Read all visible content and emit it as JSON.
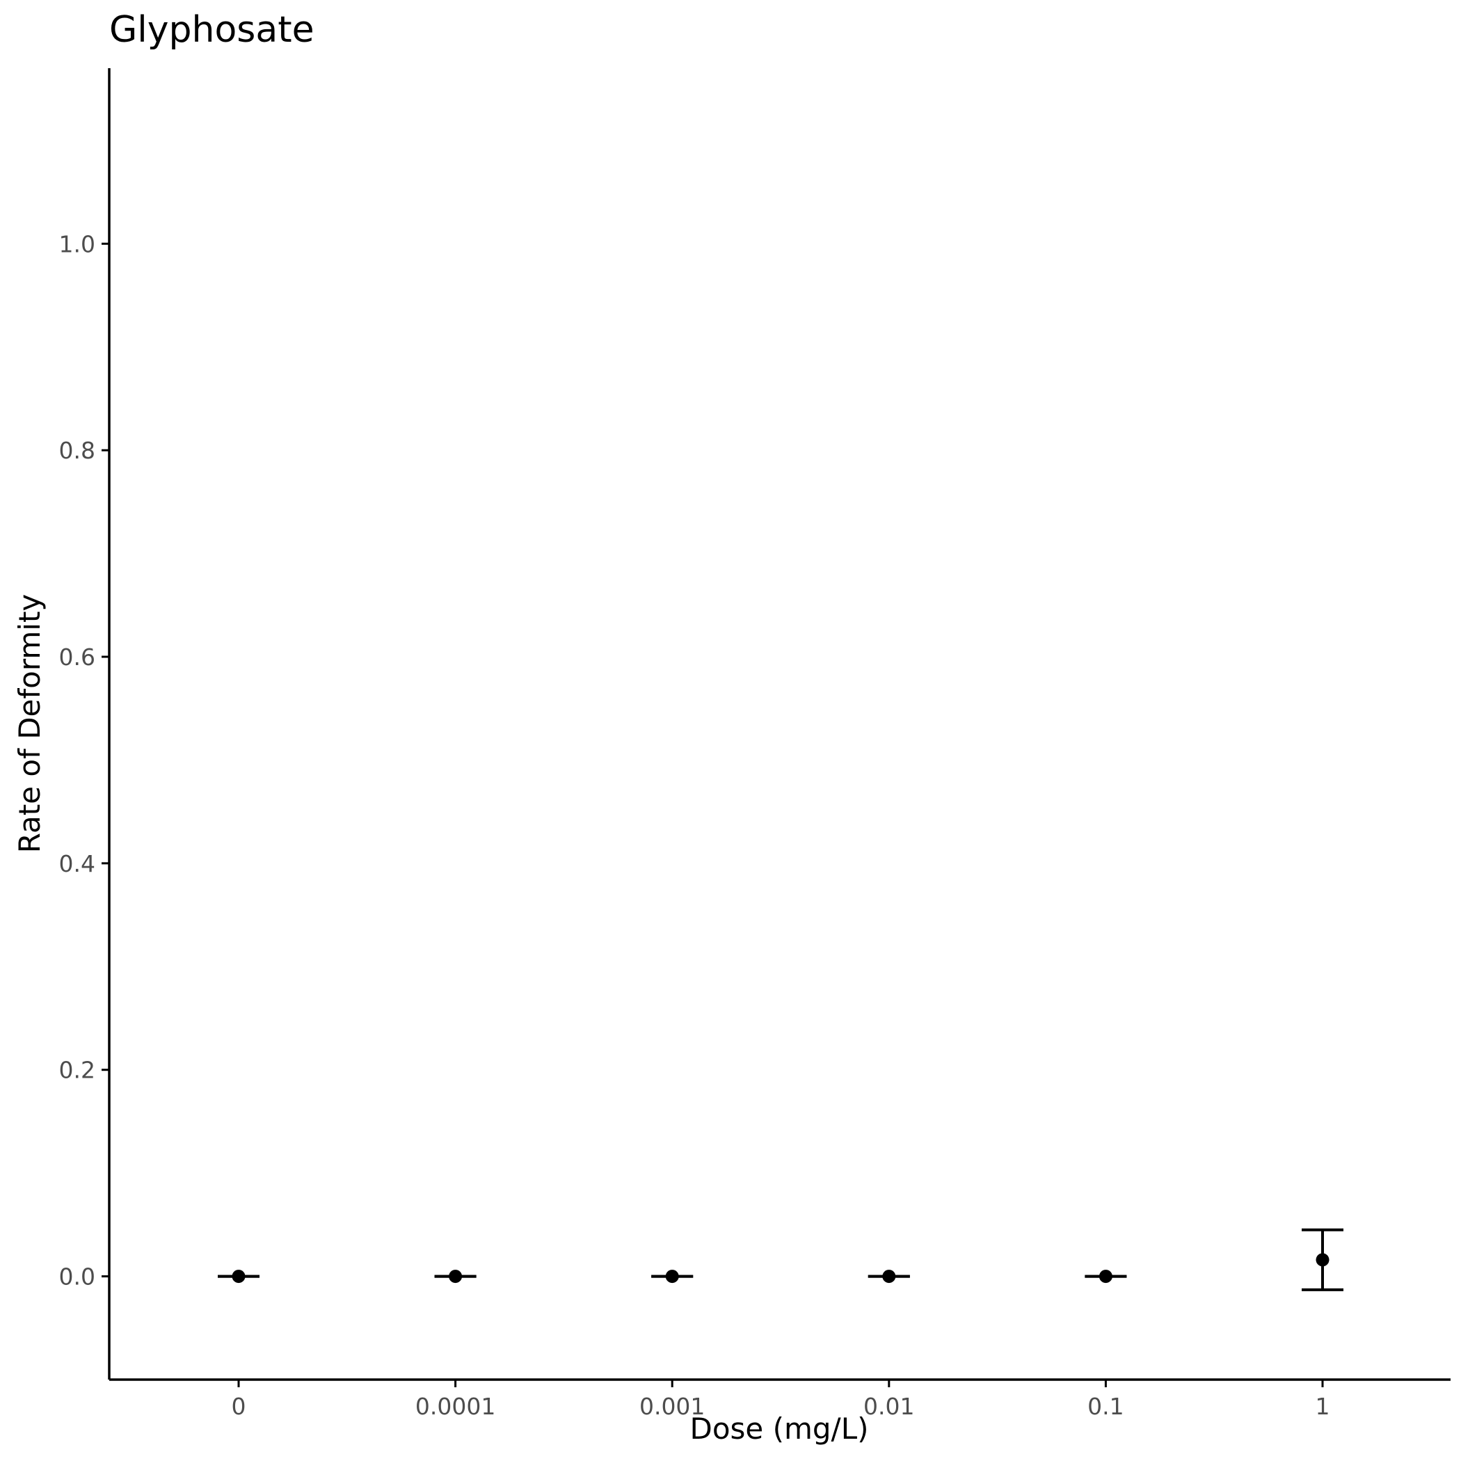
{
  "chart_data": {
    "type": "scatter",
    "title": "Glyphosate",
    "xlabel": "Dose (mg/L)",
    "ylabel": "Rate of Deformity",
    "x_type": "categorical",
    "categories": [
      "0",
      "0.0001",
      "0.001",
      "0.01",
      "0.1",
      "1"
    ],
    "series": [
      {
        "values": [
          0,
          0,
          0,
          0,
          0,
          0.016
        ],
        "error_lower": [
          0,
          0,
          0,
          0,
          0,
          -0.013
        ],
        "error_upper": [
          0,
          0,
          0,
          0,
          0,
          0.045
        ]
      }
    ],
    "ylim": [
      -0.1,
      1.17
    ],
    "yticks": [
      0.0,
      0.2,
      0.4,
      0.6,
      0.8,
      1.0
    ],
    "ytick_labels": [
      "0.0",
      "0.2",
      "0.4",
      "0.6",
      "0.8",
      "1.0"
    ],
    "grid": false,
    "legend": "none",
    "colors": {
      "points": "#000000",
      "axis": "#000000",
      "tick_labels": "#4d4d4d"
    }
  }
}
